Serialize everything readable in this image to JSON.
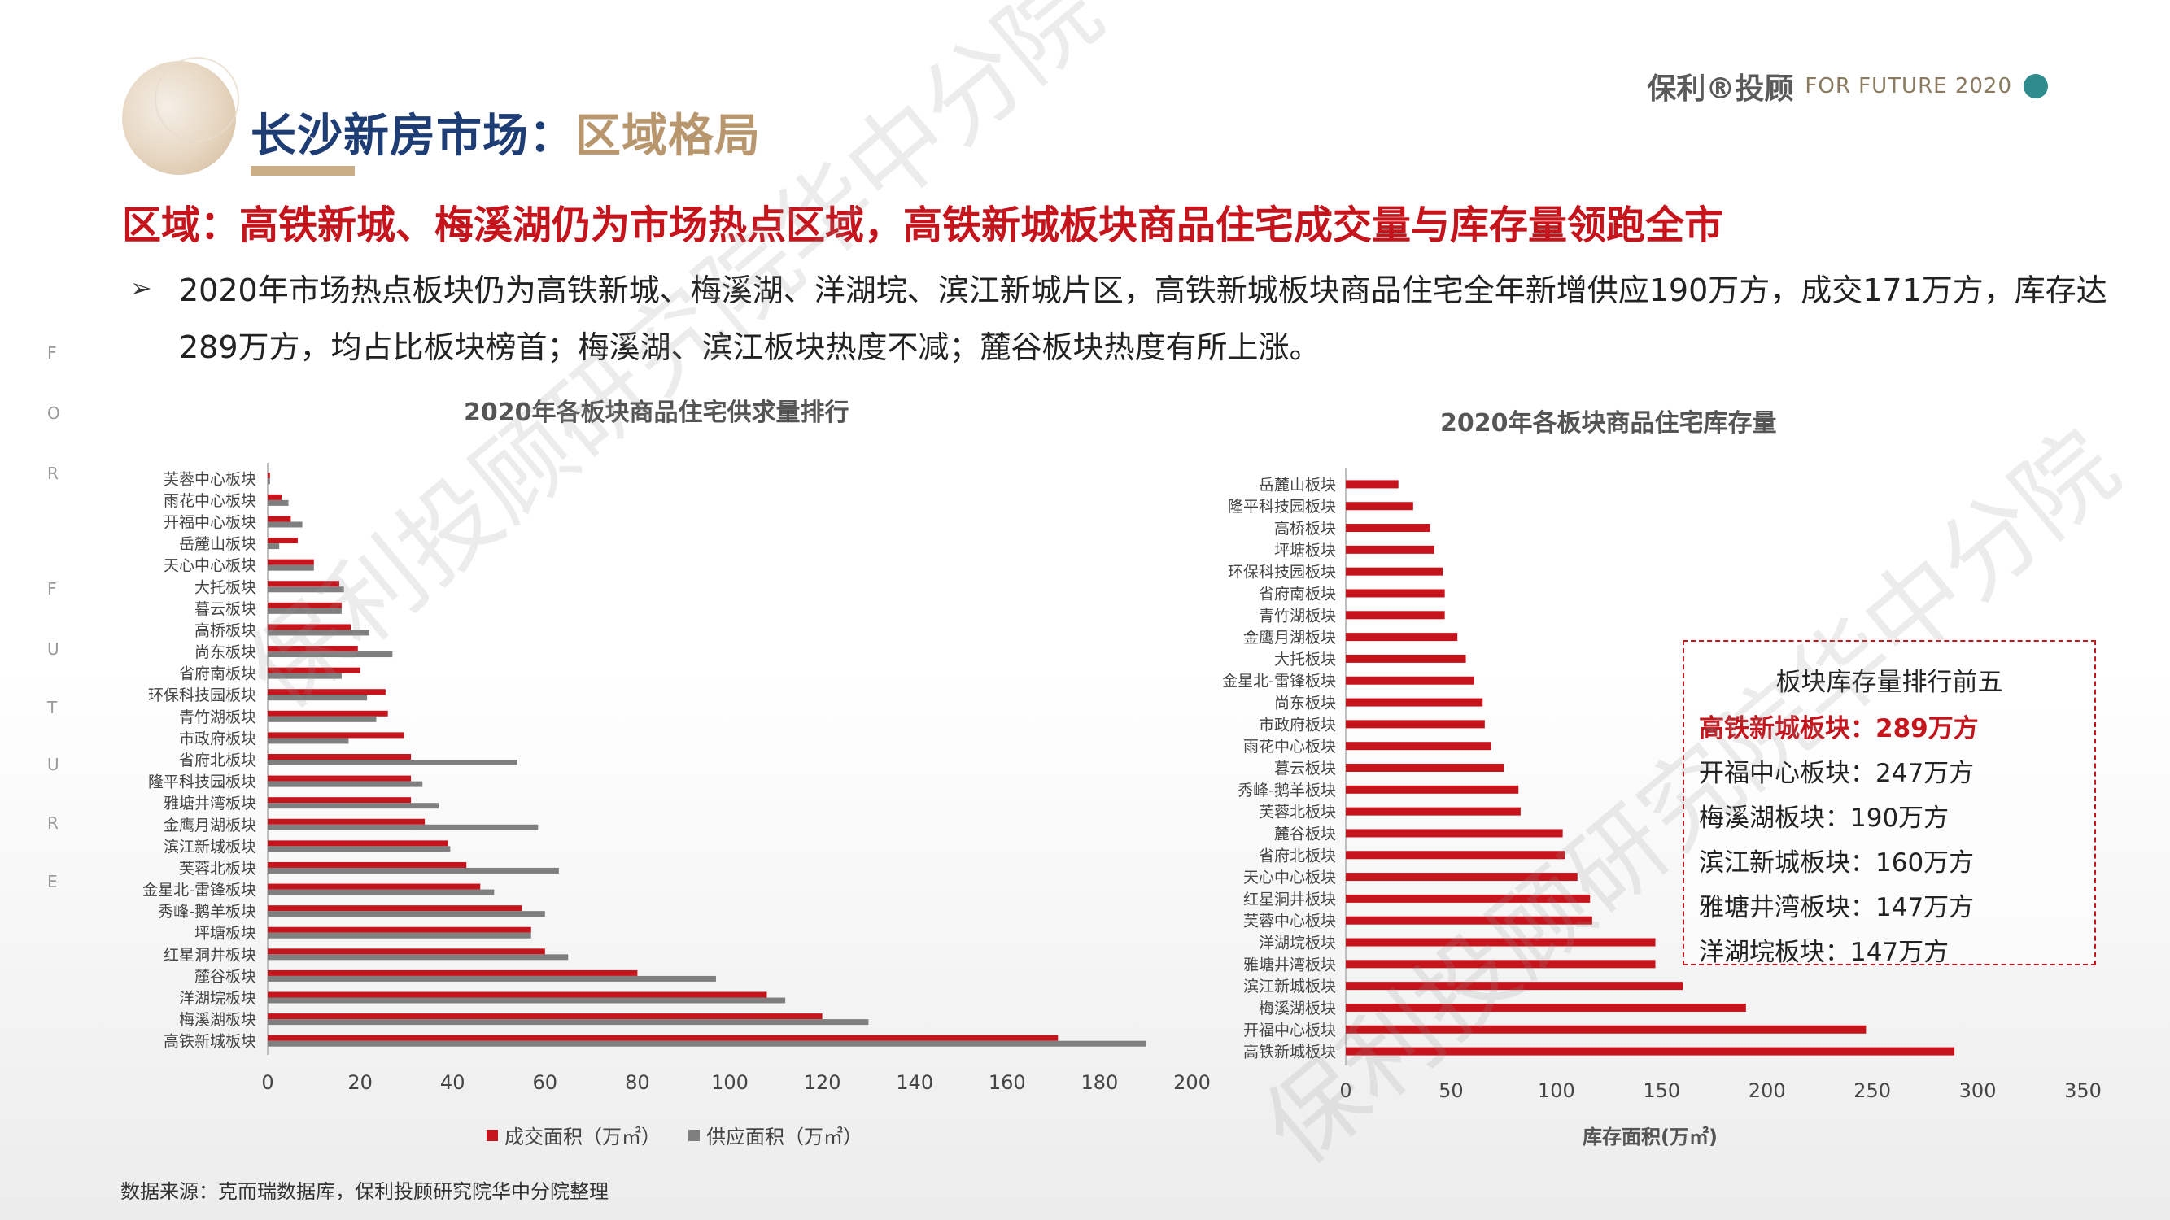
{
  "header": {
    "title_part1": "长沙新房市场：",
    "title_part2": "区域格局",
    "logo_brand": "保利®投顾",
    "logo_tag": "FOR FUTURE 2020"
  },
  "side_letters": [
    "F",
    "O",
    "R",
    "F",
    "U",
    "T",
    "U",
    "R",
    "E"
  ],
  "headline": "区域：高铁新城、梅溪湖仍为市场热点区域，高铁新城板块商品住宅成交量与库存量领跑全市",
  "bullet": {
    "mark": "➢",
    "text": "2020年市场热点板块仍为高铁新城、梅溪湖、洋湖垸、滨江新城片区，高铁新城板块商品住宅全年新增供应190万方，成交171万方，库存达289万方，均占比板块榜首；梅溪湖、滨江板块热度不减；麓谷板块热度有所上涨。"
  },
  "watermark": "保利投顾研究院华中分院",
  "top5": {
    "title": "板块库存量排行前五",
    "items": [
      "高铁新城板块：289万方",
      "开福中心板块：247万方",
      "梅溪湖板块：190万方",
      "滨江新城板块：160万方",
      "雅塘井湾板块：147万方",
      "洋湖垸板块：147万方"
    ]
  },
  "source": "数据来源：克而瑞数据库，保利投顾研究院华中分院整理",
  "colors": {
    "red": "#c6141d",
    "gray": "#7f7f7f",
    "navy": "#1f3d75",
    "gold": "#b8976e"
  },
  "chart_data": [
    {
      "type": "bar",
      "orientation": "horizontal",
      "title": "2020年各板块商品住宅供求量排行",
      "categories": [
        "芙蓉中心板块",
        "雨花中心板块",
        "开福中心板块",
        "岳麓山板块",
        "天心中心板块",
        "大托板块",
        "暮云板块",
        "高桥板块",
        "尚东板块",
        "省府南板块",
        "环保科技园板块",
        "青竹湖板块",
        "市政府板块",
        "省府北板块",
        "隆平科技园板块",
        "雅塘井湾板块",
        "金鹰月湖板块",
        "滨江新城板块",
        "芙蓉北板块",
        "金星北-雷锋板块",
        "秀峰-鹅羊板块",
        "坪塘板块",
        "红星洞井板块",
        "麓谷板块",
        "洋湖垸板块",
        "梅溪湖板块",
        "高铁新城板块"
      ],
      "series": [
        {
          "name": "成交面积（万㎡）",
          "color": "#c6141d",
          "values": [
            0.5,
            3,
            5,
            6.5,
            10,
            15.5,
            16,
            18,
            19.5,
            20,
            25.5,
            26,
            29.5,
            31,
            31,
            31,
            34,
            39,
            43,
            46,
            55,
            57,
            60,
            80,
            108,
            120,
            171
          ]
        },
        {
          "name": "供应面积（万㎡）",
          "color": "#7f7f7f",
          "values": [
            0.5,
            4.5,
            7.5,
            2.5,
            10,
            16.5,
            16,
            22,
            27,
            16,
            21.5,
            23.5,
            17.5,
            54,
            33.5,
            37,
            58.5,
            39.5,
            63,
            49,
            60,
            57,
            65,
            97,
            112,
            130,
            190
          ]
        }
      ],
      "xlim": [
        0,
        200
      ],
      "xticks": [
        "0",
        "20",
        "40",
        "60",
        "80",
        "100",
        "120",
        "140",
        "160",
        "180",
        "200"
      ]
    },
    {
      "type": "bar",
      "orientation": "horizontal",
      "title": "2020年各板块商品住宅库存量",
      "xlabel": "库存面积(万㎡)",
      "categories": [
        "岳麓山板块",
        "隆平科技园板块",
        "高桥板块",
        "坪塘板块",
        "环保科技园板块",
        "省府南板块",
        "青竹湖板块",
        "金鹰月湖板块",
        "大托板块",
        "金星北-雷锋板块",
        "尚东板块",
        "市政府板块",
        "雨花中心板块",
        "暮云板块",
        "秀峰-鹅羊板块",
        "芙蓉北板块",
        "麓谷板块",
        "省府北板块",
        "天心中心板块",
        "红星洞井板块",
        "芙蓉中心板块",
        "洋湖垸板块",
        "雅塘井湾板块",
        "滨江新城板块",
        "梅溪湖板块",
        "开福中心板块",
        "高铁新城板块"
      ],
      "series": [
        {
          "name": "库存面积",
          "color": "#c6141d",
          "values": [
            25,
            32,
            40,
            42,
            46,
            47,
            47,
            53,
            57,
            61,
            65,
            66,
            69,
            75,
            82,
            83,
            103,
            104,
            110,
            116,
            117,
            147,
            147,
            160,
            190,
            247,
            289
          ]
        }
      ],
      "xlim": [
        0,
        350
      ],
      "xticks": [
        "0",
        "50",
        "100",
        "150",
        "200",
        "250",
        "300",
        "350"
      ]
    }
  ]
}
